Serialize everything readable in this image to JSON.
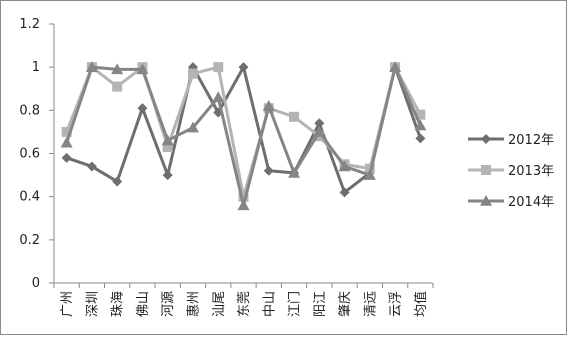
{
  "chart_data": {
    "type": "line",
    "categories": [
      "广州",
      "深圳",
      "珠海",
      "佛山",
      "河源",
      "惠州",
      "汕尾",
      "东莞",
      "中山",
      "江门",
      "阳江",
      "肇庆",
      "清远",
      "云浮",
      "均值"
    ],
    "ylim": [
      0,
      1.2
    ],
    "yticks": [
      "0",
      "0.2",
      "0.4",
      "0.6",
      "0.8",
      "1",
      "1.2"
    ],
    "grid": false,
    "legend_position": "right",
    "series": [
      {
        "name": "2012年",
        "marker": "diamond",
        "color": "#6e6e6e",
        "values": [
          0.58,
          0.54,
          0.47,
          0.81,
          0.5,
          1.0,
          0.79,
          1.0,
          0.52,
          0.51,
          0.74,
          0.42,
          0.51,
          1.0,
          0.67
        ]
      },
      {
        "name": "2013年",
        "marker": "square",
        "color": "#b4b4b4",
        "values": [
          0.7,
          1.0,
          0.91,
          1.0,
          0.63,
          0.97,
          1.0,
          0.4,
          0.81,
          0.77,
          0.68,
          0.55,
          0.53,
          1.0,
          0.78
        ]
      },
      {
        "name": "2014年",
        "marker": "triangle",
        "color": "#858585",
        "values": [
          0.65,
          1.0,
          0.99,
          0.99,
          0.66,
          0.72,
          0.86,
          0.36,
          0.82,
          0.51,
          0.7,
          0.54,
          0.5,
          1.0,
          0.73
        ]
      }
    ]
  }
}
